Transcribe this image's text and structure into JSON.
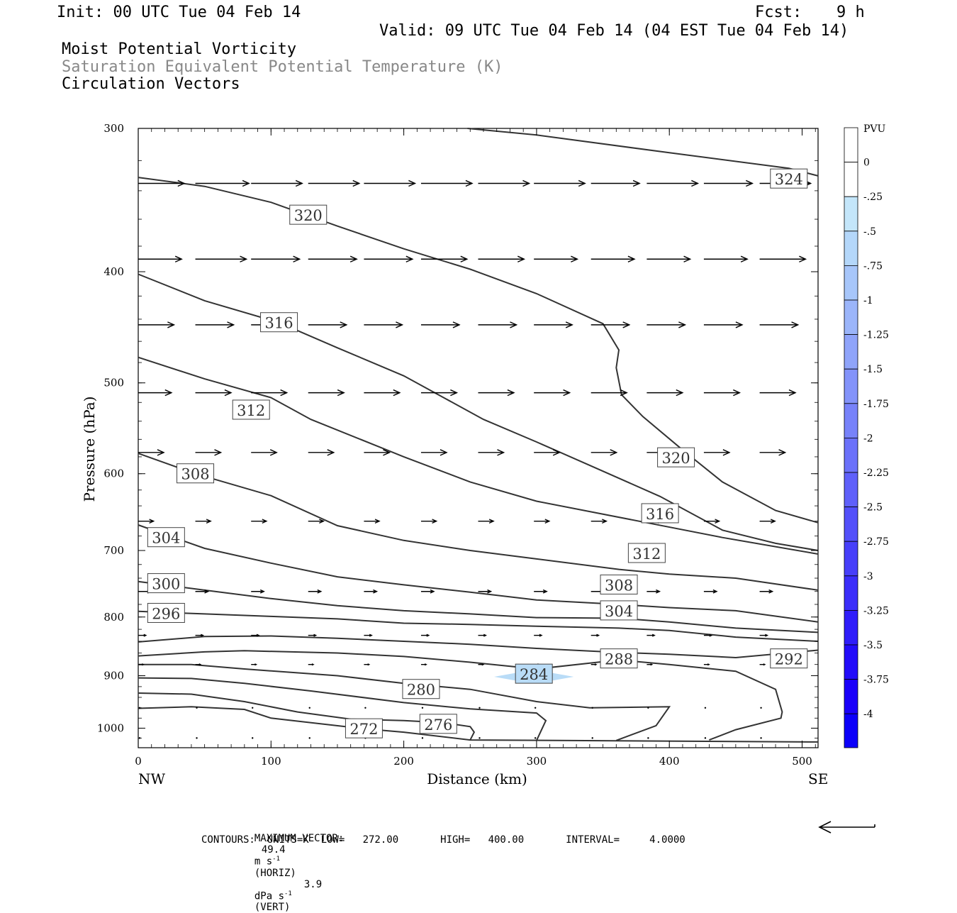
{
  "header": {
    "init": "Init: 00 UTC Tue 04 Feb 14",
    "fcst_label": "Fcst:",
    "fcst_value": "9 h",
    "valid": "Valid: 09 UTC Tue 04 Feb 14 (04 EST Tue 04 Feb 14)",
    "field1": "Moist Potential Vorticity",
    "field2": "Saturation Equivalent Potential Temperature (K)",
    "field3": "Circulation Vectors"
  },
  "footer": {
    "max_vector_label": "MAXIMUM VECTOR:",
    "horiz_value": "49.4",
    "horiz_unit": "m s",
    "horiz_exp": "-1",
    "horiz_tag": "(HORIZ)",
    "vert_value": "3.9",
    "vert_unit": "dPa s",
    "vert_exp": "-1",
    "vert_tag": "(VERT)",
    "contours_line": "CONTOURS:  UNITS=K  LOW=   272.00       HIGH=   400.00       INTERVAL=     4.0000"
  },
  "colorbar": {
    "unit": "PVU",
    "labels": [
      "0",
      "-.25",
      "-.5",
      "-.75",
      "-1",
      "-1.25",
      "-1.5",
      "-1.75",
      "-2",
      "-2.25",
      "-2.5",
      "-2.75",
      "-3",
      "-3.25",
      "-3.5",
      "-3.75",
      "-4"
    ],
    "colors": [
      "#ffffff",
      "#c4e6fa",
      "#b4d7fa",
      "#a7c6fa",
      "#9bb5fa",
      "#8fa4fa",
      "#8393fa",
      "#7782fa",
      "#6b71fa",
      "#5f60fa",
      "#5350fa",
      "#473ffa",
      "#3b2efa",
      "#2f1dfa",
      "#230cfa",
      "#1a00fa",
      "#0c00fa"
    ]
  },
  "chart_data": {
    "type": "line",
    "title": "",
    "xlabel": "Distance (km)",
    "ylabel": "Pressure (hPa)",
    "xlim": [
      0,
      512
    ],
    "ylim": [
      1040,
      300
    ],
    "y_scale": "log",
    "x_ticks": [
      0,
      100,
      200,
      300,
      400,
      500
    ],
    "x_tick_labels": [
      "0",
      "100",
      "200",
      "300",
      "400",
      "500"
    ],
    "y_ticks": [
      300,
      400,
      500,
      600,
      700,
      800,
      900,
      1000
    ],
    "y_tick_labels": [
      "300",
      "400",
      "500",
      "600",
      "700",
      "800",
      "900",
      "1000"
    ],
    "left_endpoint_label": "NW",
    "right_endpoint_label": "SE",
    "contour_labels": [
      {
        "text": "324",
        "x": 490,
        "p": 332
      },
      {
        "text": "320",
        "x": 128,
        "p": 357
      },
      {
        "text": "316",
        "x": 106,
        "p": 443
      },
      {
        "text": "312",
        "x": 85,
        "p": 528
      },
      {
        "text": "308",
        "x": 43,
        "p": 600
      },
      {
        "text": "304",
        "x": 21,
        "p": 682
      },
      {
        "text": "300",
        "x": 21,
        "p": 748
      },
      {
        "text": "296",
        "x": 21,
        "p": 794
      },
      {
        "text": "320",
        "x": 405,
        "p": 581
      },
      {
        "text": "316",
        "x": 393,
        "p": 650
      },
      {
        "text": "312",
        "x": 383,
        "p": 704
      },
      {
        "text": "308",
        "x": 362,
        "p": 750
      },
      {
        "text": "304",
        "x": 362,
        "p": 790
      },
      {
        "text": "288",
        "x": 362,
        "p": 870
      },
      {
        "text": "292",
        "x": 490,
        "p": 870
      },
      {
        "text": "284",
        "x": 298,
        "p": 897
      },
      {
        "text": "280",
        "x": 213,
        "p": 925
      },
      {
        "text": "276",
        "x": 226,
        "p": 992
      },
      {
        "text": "272",
        "x": 170,
        "p": 1001
      }
    ],
    "contours": [
      {
        "value": 324,
        "points": [
          [
            248,
            300
          ],
          [
            300,
            304
          ],
          [
            400,
            315
          ],
          [
            490,
            325
          ],
          [
            512,
            330
          ]
        ]
      },
      {
        "value": 320,
        "points": [
          [
            0,
            331
          ],
          [
            50,
            337
          ],
          [
            100,
            348
          ],
          [
            150,
            365
          ],
          [
            200,
            382
          ],
          [
            250,
            398
          ],
          [
            300,
            418
          ],
          [
            350,
            444
          ],
          [
            362,
            468
          ],
          [
            360,
            485
          ],
          [
            364,
            512
          ],
          [
            380,
            535
          ],
          [
            410,
            572
          ],
          [
            440,
            610
          ],
          [
            480,
            646
          ],
          [
            512,
            662
          ]
        ]
      },
      {
        "value": 316,
        "points": [
          [
            0,
            402
          ],
          [
            50,
            424
          ],
          [
            106,
            443
          ],
          [
            150,
            466
          ],
          [
            200,
            493
          ],
          [
            230,
            515
          ],
          [
            260,
            538
          ],
          [
            300,
            563
          ],
          [
            340,
            590
          ],
          [
            393,
            628
          ],
          [
            440,
            672
          ],
          [
            480,
            690
          ],
          [
            512,
            700
          ]
        ]
      },
      {
        "value": 312,
        "points": [
          [
            0,
            475
          ],
          [
            50,
            496
          ],
          [
            100,
            515
          ],
          [
            130,
            538
          ],
          [
            200,
            580
          ],
          [
            250,
            610
          ],
          [
            300,
            634
          ],
          [
            383,
            662
          ],
          [
            440,
            682
          ],
          [
            512,
            705
          ]
        ]
      },
      {
        "value": 308,
        "points": [
          [
            0,
            576
          ],
          [
            43,
            600
          ],
          [
            100,
            627
          ],
          [
            150,
            666
          ],
          [
            200,
            686
          ],
          [
            250,
            700
          ],
          [
            300,
            712
          ],
          [
            362,
            727
          ],
          [
            400,
            734
          ],
          [
            450,
            740
          ],
          [
            512,
            758
          ]
        ]
      },
      {
        "value": 304,
        "points": [
          [
            0,
            665
          ],
          [
            50,
            697
          ],
          [
            100,
            718
          ],
          [
            150,
            738
          ],
          [
            200,
            750
          ],
          [
            250,
            761
          ],
          [
            300,
            773
          ],
          [
            362,
            780
          ],
          [
            400,
            785
          ],
          [
            450,
            790
          ],
          [
            512,
            808
          ]
        ]
      },
      {
        "value": 300,
        "points": [
          [
            0,
            745
          ],
          [
            50,
            758
          ],
          [
            100,
            771
          ],
          [
            150,
            782
          ],
          [
            200,
            790
          ],
          [
            250,
            795
          ],
          [
            300,
            801
          ],
          [
            362,
            802
          ],
          [
            400,
            808
          ],
          [
            450,
            818
          ],
          [
            512,
            825
          ]
        ]
      },
      {
        "value": 296,
        "points": [
          [
            0,
            791
          ],
          [
            50,
            795
          ],
          [
            100,
            799
          ],
          [
            150,
            803
          ],
          [
            200,
            810
          ],
          [
            250,
            812
          ],
          [
            300,
            815
          ],
          [
            362,
            818
          ],
          [
            400,
            822
          ],
          [
            450,
            833
          ],
          [
            512,
            840
          ]
        ]
      },
      {
        "value": 292,
        "points": [
          [
            0,
            841
          ],
          [
            50,
            832
          ],
          [
            100,
            831
          ],
          [
            150,
            835
          ],
          [
            200,
            840
          ],
          [
            250,
            845
          ],
          [
            300,
            852
          ],
          [
            362,
            859
          ],
          [
            400,
            862
          ],
          [
            450,
            868
          ],
          [
            512,
            855
          ]
        ]
      },
      {
        "value": 288,
        "points": [
          [
            0,
            865
          ],
          [
            50,
            858
          ],
          [
            80,
            856
          ],
          [
            150,
            860
          ],
          [
            200,
            866
          ],
          [
            250,
            876
          ],
          [
            300,
            888
          ],
          [
            362,
            872
          ],
          [
            400,
            880
          ],
          [
            450,
            892
          ],
          [
            480,
            925
          ],
          [
            485,
            968
          ],
          [
            484,
            980
          ],
          [
            450,
            1003
          ],
          [
            430,
            1024
          ]
        ]
      },
      {
        "value": 284,
        "points": [
          [
            0,
            880
          ],
          [
            40,
            880
          ],
          [
            80,
            888
          ],
          [
            150,
            900
          ],
          [
            200,
            914
          ],
          [
            250,
            925
          ],
          [
            300,
            948
          ],
          [
            340,
            960
          ],
          [
            400,
            958
          ],
          [
            390,
            995
          ],
          [
            360,
            1025
          ]
        ]
      },
      {
        "value": 280,
        "points": [
          [
            0,
            904
          ],
          [
            40,
            905
          ],
          [
            80,
            914
          ],
          [
            130,
            928
          ],
          [
            200,
            950
          ],
          [
            250,
            962
          ],
          [
            300,
            970
          ],
          [
            307,
            985
          ],
          [
            300,
            1025
          ]
        ]
      },
      {
        "value": 276,
        "points": [
          [
            0,
            932
          ],
          [
            40,
            934
          ],
          [
            80,
            948
          ],
          [
            120,
            968
          ],
          [
            160,
            982
          ],
          [
            200,
            985
          ],
          [
            230,
            989
          ],
          [
            250,
            997
          ],
          [
            253,
            1008
          ],
          [
            250,
            1024
          ]
        ]
      },
      {
        "value": 272,
        "points": [
          [
            0,
            961
          ],
          [
            40,
            958
          ],
          [
            80,
            963
          ],
          [
            100,
            980
          ],
          [
            170,
            1001
          ],
          [
            200,
            1008
          ],
          [
            250,
            1024
          ],
          [
            512,
            1028
          ]
        ]
      }
    ],
    "pv_shading": [
      {
        "value_range": [
          -0.25,
          -0.5
        ],
        "center_x": 298,
        "center_p": 902,
        "half_width_km": 30
      }
    ],
    "vectors_note": "Circulation vectors on grid; lengths scaled by max vector 49.4 m/s horiz",
    "vector_rows": [
      {
        "p": 335,
        "lengths": [
          36,
          42,
          40,
          40,
          40,
          40,
          40,
          40,
          38,
          40,
          38,
          40
        ]
      },
      {
        "p": 390,
        "lengths": [
          34,
          40,
          38,
          38,
          38,
          36,
          36,
          34,
          34,
          34,
          34,
          36
        ]
      },
      {
        "p": 445,
        "lengths": [
          28,
          30,
          30,
          30,
          30,
          30,
          30,
          30,
          30,
          30,
          30,
          30
        ]
      },
      {
        "p": 510,
        "lengths": [
          26,
          28,
          28,
          28,
          28,
          28,
          28,
          28,
          28,
          28,
          28,
          28
        ]
      },
      {
        "p": 575,
        "lengths": [
          20,
          20,
          20,
          20,
          20,
          20,
          20,
          20,
          20,
          20,
          20,
          20
        ]
      },
      {
        "p": 660,
        "lengths": [
          12,
          12,
          12,
          12,
          12,
          12,
          12,
          12,
          12,
          12,
          12,
          12
        ]
      },
      {
        "p": 760,
        "lengths": [
          10,
          10,
          10,
          10,
          10,
          10,
          10,
          10,
          10,
          10,
          10,
          10
        ]
      },
      {
        "p": 830,
        "lengths": [
          6,
          6,
          6,
          6,
          6,
          6,
          6,
          6,
          6,
          6,
          6,
          6
        ]
      },
      {
        "p": 880,
        "lengths": [
          4,
          4,
          4,
          4,
          4,
          4,
          4,
          4,
          4,
          4,
          4,
          4
        ]
      },
      {
        "p": 960,
        "lengths": [
          2,
          2,
          2,
          2,
          2,
          2,
          2,
          2,
          2,
          2,
          2,
          2
        ]
      },
      {
        "p": 1020,
        "lengths": [
          2,
          2,
          2,
          2,
          2,
          2,
          2,
          2,
          2,
          2,
          2,
          2
        ]
      }
    ]
  }
}
